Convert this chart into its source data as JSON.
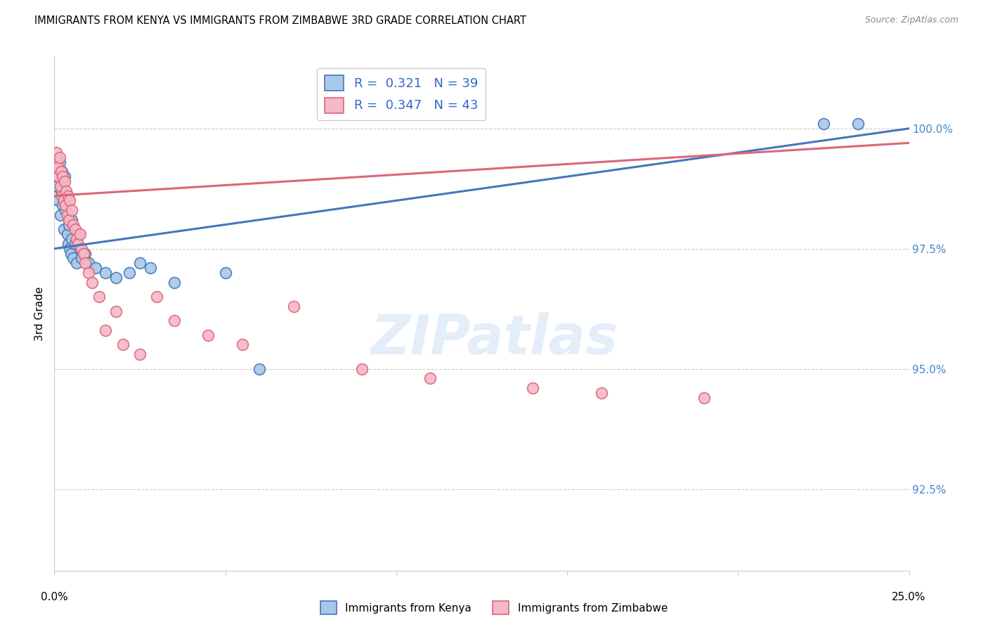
{
  "title": "IMMIGRANTS FROM KENYA VS IMMIGRANTS FROM ZIMBABWE 3RD GRADE CORRELATION CHART",
  "source": "Source: ZipAtlas.com",
  "ylabel": "3rd Grade",
  "y_tick_labels": [
    "92.5%",
    "95.0%",
    "97.5%",
    "100.0%"
  ],
  "y_tick_values": [
    92.5,
    95.0,
    97.5,
    100.0
  ],
  "xlim": [
    0.0,
    25.0
  ],
  "ylim": [
    90.8,
    101.5
  ],
  "legend_kenya": "R =  0.321   N = 39",
  "legend_zimbabwe": "R =  0.347   N = 43",
  "legend_label_kenya": "Immigrants from Kenya",
  "legend_label_zimbabwe": "Immigrants from Zimbabwe",
  "color_kenya": "#a8c8e8",
  "color_zimbabwe": "#f4b8c8",
  "color_kenya_line": "#4477bb",
  "color_zimbabwe_line": "#dd6677",
  "color_axis_right": "#4488cc",
  "kenya_line_x0": 0.0,
  "kenya_line_y0": 97.5,
  "kenya_line_x1": 25.0,
  "kenya_line_y1": 100.0,
  "zimbabwe_line_x0": 0.0,
  "zimbabwe_line_y0": 98.6,
  "zimbabwe_line_x1": 25.0,
  "zimbabwe_line_y1": 99.7,
  "kenya_x": [
    0.05,
    0.08,
    0.1,
    0.12,
    0.15,
    0.18,
    0.2,
    0.22,
    0.25,
    0.28,
    0.3,
    0.32,
    0.35,
    0.38,
    0.4,
    0.42,
    0.45,
    0.48,
    0.5,
    0.5,
    0.55,
    0.6,
    0.65,
    0.7,
    0.75,
    0.8,
    0.9,
    1.0,
    1.2,
    1.5,
    1.8,
    2.2,
    2.5,
    2.8,
    3.5,
    5.0,
    6.0,
    22.5,
    23.5
  ],
  "kenya_y": [
    99.2,
    98.8,
    99.0,
    98.5,
    99.3,
    98.2,
    98.7,
    99.1,
    98.4,
    97.9,
    99.0,
    98.3,
    98.6,
    97.8,
    97.6,
    98.0,
    97.5,
    97.4,
    98.1,
    97.7,
    97.3,
    97.6,
    97.2,
    97.8,
    97.5,
    97.3,
    97.4,
    97.2,
    97.1,
    97.0,
    96.9,
    97.0,
    97.2,
    97.1,
    96.8,
    97.0,
    95.0,
    100.1,
    100.1
  ],
  "zimbabwe_x": [
    0.05,
    0.08,
    0.1,
    0.12,
    0.15,
    0.18,
    0.2,
    0.22,
    0.25,
    0.28,
    0.3,
    0.32,
    0.35,
    0.38,
    0.4,
    0.42,
    0.45,
    0.5,
    0.55,
    0.6,
    0.65,
    0.7,
    0.75,
    0.8,
    0.85,
    0.9,
    1.0,
    1.1,
    1.3,
    1.5,
    1.8,
    2.0,
    2.5,
    3.0,
    3.5,
    4.5,
    5.5,
    7.0,
    9.0,
    11.0,
    14.0,
    16.0,
    19.0
  ],
  "zimbabwe_y": [
    99.5,
    99.3,
    99.2,
    99.0,
    99.4,
    98.8,
    99.1,
    98.6,
    99.0,
    98.5,
    98.9,
    98.4,
    98.7,
    98.2,
    98.6,
    98.1,
    98.5,
    98.3,
    98.0,
    97.9,
    97.7,
    97.6,
    97.8,
    97.5,
    97.4,
    97.2,
    97.0,
    96.8,
    96.5,
    95.8,
    96.2,
    95.5,
    95.3,
    96.5,
    96.0,
    95.7,
    95.5,
    96.3,
    95.0,
    94.8,
    94.6,
    94.5,
    94.4
  ]
}
